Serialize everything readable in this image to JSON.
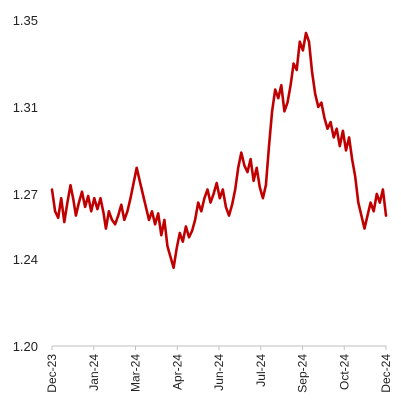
{
  "chart_data": {
    "type": "line",
    "title": "",
    "xlabel": "",
    "ylabel": "",
    "ylim": [
      1.2,
      1.35
    ],
    "y_ticks": [
      {
        "value": 1.35,
        "label": "1.35"
      },
      {
        "value": 1.31,
        "label": "1.31"
      },
      {
        "value": 1.27,
        "label": "1.27"
      },
      {
        "value": 1.24,
        "label": "1.24"
      },
      {
        "value": 1.2,
        "label": "1.20"
      }
    ],
    "x_ticks": [
      "Dec-23",
      "Jan-24",
      "Mar-24",
      "Apr-24",
      "Jun-24",
      "Jul-24",
      "Sep-24",
      "Oct-24",
      "Dec-24"
    ],
    "grid": false,
    "legend": "none",
    "line_color": "#c00000",
    "series": [
      {
        "values": [
          [
            0,
            1.272
          ],
          [
            0.4,
            1.262
          ],
          [
            0.8,
            1.259
          ],
          [
            1.2,
            1.268
          ],
          [
            1.6,
            1.257
          ],
          [
            2.0,
            1.266
          ],
          [
            2.4,
            1.274
          ],
          [
            2.8,
            1.267
          ],
          [
            3.1,
            1.26
          ],
          [
            3.5,
            1.266
          ],
          [
            3.9,
            1.271
          ],
          [
            4.3,
            1.264
          ],
          [
            4.7,
            1.269
          ],
          [
            5.1,
            1.262
          ],
          [
            5.5,
            1.268
          ],
          [
            5.9,
            1.263
          ],
          [
            6.3,
            1.268
          ],
          [
            6.7,
            1.261
          ],
          [
            7.0,
            1.254
          ],
          [
            7.4,
            1.262
          ],
          [
            7.8,
            1.258
          ],
          [
            8.2,
            1.256
          ],
          [
            8.6,
            1.26
          ],
          [
            9.0,
            1.265
          ],
          [
            9.4,
            1.258
          ],
          [
            9.8,
            1.262
          ],
          [
            10.2,
            1.268
          ],
          [
            10.6,
            1.275
          ],
          [
            11.0,
            1.282
          ],
          [
            11.4,
            1.276
          ],
          [
            11.8,
            1.27
          ],
          [
            12.2,
            1.264
          ],
          [
            12.6,
            1.258
          ],
          [
            13.0,
            1.262
          ],
          [
            13.4,
            1.256
          ],
          [
            13.8,
            1.261
          ],
          [
            14.2,
            1.251
          ],
          [
            14.6,
            1.258
          ],
          [
            15.0,
            1.246
          ],
          [
            15.4,
            1.241
          ],
          [
            15.8,
            1.236
          ],
          [
            16.2,
            1.245
          ],
          [
            16.6,
            1.252
          ],
          [
            17.0,
            1.248
          ],
          [
            17.4,
            1.255
          ],
          [
            17.8,
            1.25
          ],
          [
            18.2,
            1.253
          ],
          [
            18.6,
            1.258
          ],
          [
            19.0,
            1.266
          ],
          [
            19.4,
            1.262
          ],
          [
            19.8,
            1.268
          ],
          [
            20.2,
            1.272
          ],
          [
            20.6,
            1.266
          ],
          [
            21.0,
            1.27
          ],
          [
            21.4,
            1.275
          ],
          [
            21.8,
            1.268
          ],
          [
            22.2,
            1.272
          ],
          [
            22.6,
            1.264
          ],
          [
            23.0,
            1.26
          ],
          [
            23.4,
            1.265
          ],
          [
            23.8,
            1.272
          ],
          [
            24.2,
            1.282
          ],
          [
            24.6,
            1.289
          ],
          [
            25.0,
            1.283
          ],
          [
            25.4,
            1.28
          ],
          [
            25.8,
            1.286
          ],
          [
            26.2,
            1.276
          ],
          [
            26.6,
            1.282
          ],
          [
            27.0,
            1.273
          ],
          [
            27.4,
            1.268
          ],
          [
            27.8,
            1.274
          ],
          [
            28.2,
            1.292
          ],
          [
            28.6,
            1.308
          ],
          [
            29.0,
            1.318
          ],
          [
            29.4,
            1.314
          ],
          [
            29.8,
            1.32
          ],
          [
            30.2,
            1.308
          ],
          [
            30.6,
            1.312
          ],
          [
            31.0,
            1.32
          ],
          [
            31.4,
            1.33
          ],
          [
            31.8,
            1.327
          ],
          [
            32.2,
            1.34
          ],
          [
            32.6,
            1.336
          ],
          [
            33.0,
            1.344
          ],
          [
            33.4,
            1.34
          ],
          [
            33.8,
            1.326
          ],
          [
            34.2,
            1.316
          ],
          [
            34.6,
            1.31
          ],
          [
            35.0,
            1.312
          ],
          [
            35.4,
            1.305
          ],
          [
            35.8,
            1.3
          ],
          [
            36.2,
            1.303
          ],
          [
            36.6,
            1.296
          ],
          [
            37.0,
            1.3
          ],
          [
            37.4,
            1.292
          ],
          [
            37.8,
            1.299
          ],
          [
            38.2,
            1.29
          ],
          [
            38.6,
            1.296
          ],
          [
            39.0,
            1.286
          ],
          [
            39.4,
            1.278
          ],
          [
            39.8,
            1.266
          ],
          [
            40.2,
            1.26
          ],
          [
            40.6,
            1.254
          ],
          [
            41.0,
            1.26
          ],
          [
            41.4,
            1.266
          ],
          [
            41.8,
            1.262
          ],
          [
            42.2,
            1.27
          ],
          [
            42.6,
            1.266
          ],
          [
            43.0,
            1.272
          ],
          [
            43.4,
            1.26
          ]
        ]
      }
    ],
    "x_domain": [
      0,
      43.4
    ]
  }
}
